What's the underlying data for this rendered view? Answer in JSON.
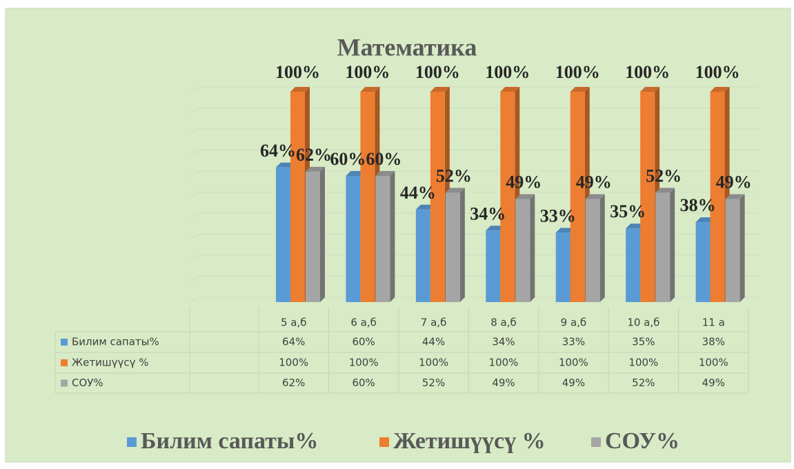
{
  "chart_data": {
    "type": "bar3d",
    "title": "Математика",
    "categories": [
      "5 а,б",
      "6 а,б",
      "7 а,б",
      "8 а,б",
      "9 а,б",
      "10 а,б",
      "11 а"
    ],
    "series": [
      {
        "name": "Билим сапаты%",
        "color": "#5b9bd5",
        "values": [
          64,
          60,
          44,
          34,
          33,
          35,
          38
        ],
        "value_labels": [
          "64%",
          "60%",
          "44%",
          "34%",
          "33%",
          "35%",
          "38%"
        ]
      },
      {
        "name": "Жетишүүсү %",
        "color": "#ed7d31",
        "values": [
          100,
          100,
          100,
          100,
          100,
          100,
          100
        ],
        "value_labels": [
          "100%",
          "100%",
          "100%",
          "100%",
          "100%",
          "100%",
          "100%"
        ]
      },
      {
        "name": "СОУ%",
        "color": "#a5a5a5",
        "values": [
          62,
          60,
          52,
          49,
          49,
          52,
          49
        ],
        "value_labels": [
          "62%",
          "60%",
          "52%",
          "49%",
          "49%",
          "52%",
          "49%"
        ]
      }
    ],
    "ylim": [
      0,
      100
    ],
    "yticks": [
      0,
      10,
      20,
      30,
      40,
      50,
      60,
      70,
      80,
      90,
      100
    ],
    "grid": true,
    "legend": "bottom"
  }
}
